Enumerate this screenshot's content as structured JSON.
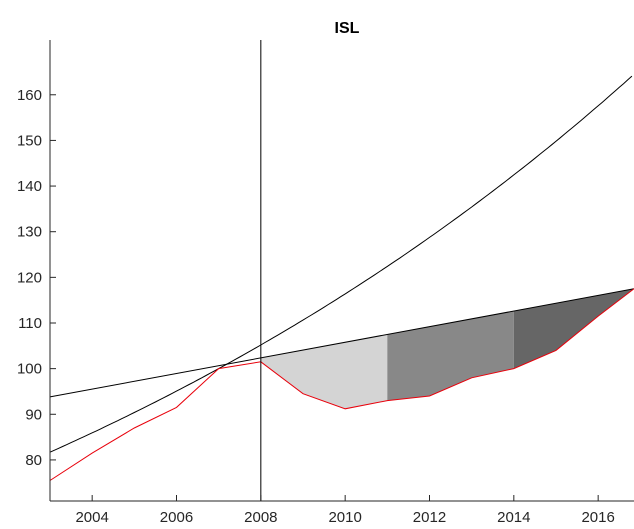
{
  "chart_data": {
    "type": "line",
    "title": "ISL",
    "xlabel": "",
    "ylabel": "",
    "xlim": [
      2003,
      2016.85
    ],
    "ylim": [
      71,
      172
    ],
    "xticks": [
      2004,
      2006,
      2008,
      2010,
      2012,
      2014,
      2016
    ],
    "yticks": [
      80,
      90,
      100,
      110,
      120,
      130,
      140,
      150,
      160
    ],
    "grid": false,
    "box": false,
    "vline_x": 2008,
    "series": [
      {
        "color": "#e8000b",
        "x": [
          2003,
          2004,
          2005,
          2006,
          2007,
          2008,
          2009,
          2010,
          2011,
          2012,
          2013,
          2014,
          2015,
          2016,
          2016.85
        ],
        "values": [
          75.5,
          81.5,
          87.0,
          91.5,
          100.0,
          101.5,
          94.5,
          91.2,
          93.0,
          94.0,
          98.0,
          100.0,
          104.0,
          111.5,
          117.5
        ]
      },
      {
        "color": "#000000",
        "x": [
          2003,
          2007,
          2016.85
        ],
        "values": [
          82.3,
          100.0,
          164.5
        ],
        "curve": "exponential"
      },
      {
        "color": "#000000",
        "x": [
          2003,
          2016.85
        ],
        "values": [
          93.8,
          117.5
        ]
      }
    ],
    "shaded_bands": [
      {
        "from": 2008,
        "to": 2011,
        "color": "#d4d4d4"
      },
      {
        "from": 2011,
        "to": 2014,
        "color": "#888888"
      },
      {
        "from": 2014,
        "to": 2016.85,
        "color": "#666666"
      }
    ]
  }
}
